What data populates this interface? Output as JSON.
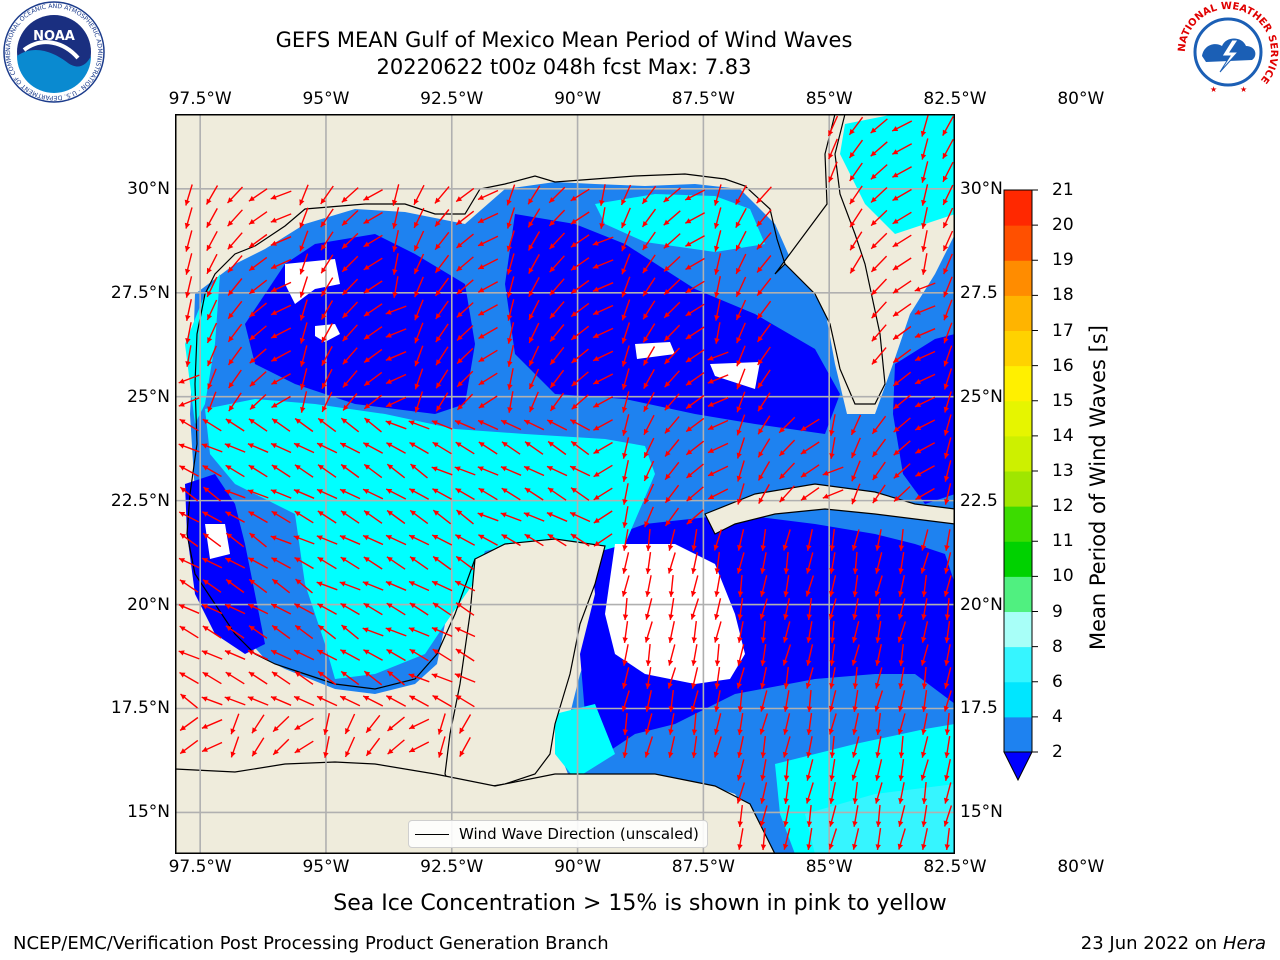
{
  "header": {
    "title_line1": "GEFS MEAN Gulf of Mexico Mean Period of Wind Waves",
    "title_line2": "20220622 t00z 048h fcst   Max: 7.83"
  },
  "logos": {
    "noaa_text": "NOAA",
    "noaa_ring_text": "NATIONAL OCEANIC AND ATMOSPHERIC ADMINISTRATION · U.S. DEPARTMENT OF COMMERCE",
    "nws_ring_text": "NATIONAL WEATHER SERVICE"
  },
  "map": {
    "lon_range": [
      -98,
      -82.5
    ],
    "lat_range": [
      14,
      31.8
    ],
    "lon_ticks": [
      "97.5°W",
      "95°W",
      "92.5°W",
      "90°W",
      "87.5°W",
      "85°W",
      "82.5°W",
      "80°W"
    ],
    "lat_ticks": [
      "15°N",
      "17.5°N",
      "20°N",
      "22.5°N",
      "25°N",
      "27.5°N",
      "30°N"
    ],
    "lat_ticks_right": [
      "15°N",
      "17.5",
      "20°N",
      "22.5",
      "25°N",
      "27.5",
      "30°N"
    ],
    "colors": {
      "land": "#efecdc",
      "ocean_low": "#0000ff",
      "ocean_mid": "#1e82f0",
      "ocean_high": "#00ffff",
      "arrows": "#ff0000",
      "grid": "#b0b0b0"
    },
    "legend_label": "Wind Wave Direction (unscaled)"
  },
  "colorbar": {
    "label": "Mean Period of Wind Waves [s]",
    "ticks": [
      "2",
      "4",
      "6",
      "8",
      "9",
      "10",
      "11",
      "12",
      "13",
      "14",
      "15",
      "16",
      "17",
      "18",
      "19",
      "20",
      "21"
    ],
    "colors": [
      "#1e82f0",
      "#00e6ff",
      "#36f5ff",
      "#a8fff8",
      "#50f080",
      "#00d200",
      "#3cdc00",
      "#a0e600",
      "#cdf000",
      "#e6f500",
      "#fff000",
      "#ffd200",
      "#ffb400",
      "#ff8c00",
      "#ff5000",
      "#ff2800",
      "#ff0000"
    ],
    "extend_color": "#0000ff"
  },
  "footer": {
    "note": "Sea Ice Concentration > 15% is shown in pink to yellow",
    "credit": "NCEP/EMC/Verification Post Processing Product Generation Branch",
    "date": "23 Jun 2022 on",
    "machine": "Hera"
  }
}
